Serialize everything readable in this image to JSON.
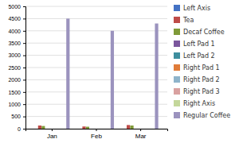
{
  "chart_data": {
    "type": "bar",
    "categories": [
      "Jan",
      "Feb",
      "Mar"
    ],
    "series": [
      {
        "name": "Left Axis",
        "color": "#4472C4",
        "values": [
          0,
          0,
          0
        ]
      },
      {
        "name": "Tea",
        "color": "#BE4B48",
        "values": [
          130,
          90,
          150
        ]
      },
      {
        "name": "Decaf Coffee",
        "color": "#7F9A38",
        "values": [
          110,
          80,
          130
        ]
      },
      {
        "name": "Left Pad 1",
        "color": "#7B579D",
        "values": [
          0,
          0,
          0
        ]
      },
      {
        "name": "Left Pad 2",
        "color": "#3E8E9E",
        "values": [
          0,
          0,
          0
        ]
      },
      {
        "name": "Right Pad 1",
        "color": "#E07C39",
        "values": [
          0,
          0,
          0
        ]
      },
      {
        "name": "Right Pad 2",
        "color": "#8EB4CB",
        "values": [
          0,
          0,
          0
        ]
      },
      {
        "name": "Right Pad 3",
        "color": "#D9A1A0",
        "values": [
          0,
          0,
          0
        ]
      },
      {
        "name": "Right Axis",
        "color": "#C4D79B",
        "values": [
          0,
          0,
          0
        ]
      },
      {
        "name": "Regular Coffee",
        "color": "#9B93BE",
        "values": [
          4500,
          4000,
          4300
        ]
      }
    ],
    "ylim": [
      0,
      5000
    ],
    "yticks": [
      0,
      500,
      1000,
      1500,
      2000,
      2500,
      3000,
      3500,
      4000,
      4500,
      5000
    ],
    "grid": true,
    "legend": "right"
  }
}
